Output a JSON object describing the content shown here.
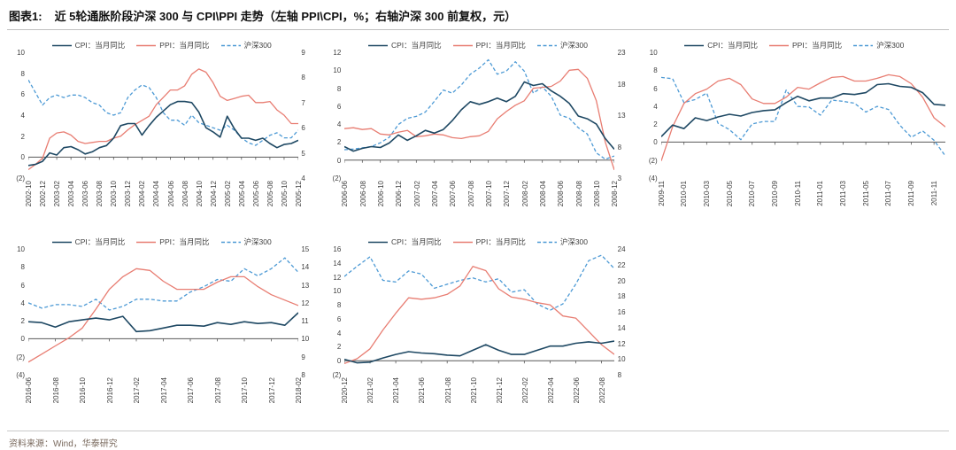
{
  "header": {
    "figure_label": "图表1:",
    "title": "近 5轮通胀阶段沪深 300 与 CPI\\PPI 走势（左轴 PPI\\CPI，%；右轴沪深 300 前复权，元）"
  },
  "source": {
    "text": "资料来源：Wind，华泰研究"
  },
  "colors": {
    "cpi": "#1e4863",
    "ppi": "#e87d72",
    "csi300": "#4d9ad5",
    "axis": "#595959"
  },
  "chart_data": [
    {
      "type": "line",
      "x": [
        "2002-10",
        "2002-11",
        "2002-12",
        "2003-01",
        "2003-02",
        "2003-03",
        "2003-04",
        "2003-05",
        "2003-06",
        "2003-07",
        "2003-08",
        "2003-09",
        "2003-10",
        "2003-11",
        "2003-12",
        "2004-01",
        "2004-02",
        "2004-03",
        "2004-04",
        "2004-05",
        "2004-06",
        "2004-07",
        "2004-08",
        "2004-09",
        "2004-10",
        "2004-11",
        "2004-12",
        "2005-01",
        "2005-02",
        "2005-03",
        "2005-04",
        "2005-05",
        "2005-06",
        "2005-07",
        "2005-08",
        "2005-09",
        "2005-10",
        "2005-11",
        "2005-12"
      ],
      "x_tick_labels": [
        "2002-10",
        "2002-12",
        "2003-02",
        "2003-04",
        "2003-06",
        "2003-08",
        "2003-10",
        "2003-12",
        "2004-02",
        "2004-04",
        "2004-06",
        "2004-08",
        "2004-10",
        "2004-12",
        "2005-02",
        "2005-04",
        "2005-06",
        "2005-08",
        "2005-10",
        "2005-12"
      ],
      "left_axis": {
        "min": -2,
        "max": 10,
        "labels": [
          "10",
          "8",
          "6",
          "4",
          "2",
          "0",
          "(2)"
        ]
      },
      "right_axis": {
        "min": 4,
        "max": 9,
        "labels": [
          "9",
          "8",
          "7",
          "6",
          "5",
          "4"
        ]
      },
      "series": [
        {
          "name": "CPI：当月同比",
          "axis": "left",
          "color_key": "cpi",
          "dash": false,
          "values": [
            -0.8,
            -0.7,
            -0.4,
            0.4,
            0.2,
            0.9,
            1.0,
            0.7,
            0.3,
            0.5,
            0.9,
            1.1,
            1.8,
            3.0,
            3.2,
            3.2,
            2.1,
            3.0,
            3.8,
            4.4,
            5.0,
            5.3,
            5.3,
            5.2,
            4.3,
            2.8,
            2.4,
            1.9,
            3.9,
            2.7,
            1.8,
            1.8,
            1.6,
            1.8,
            1.3,
            0.9,
            1.2,
            1.3,
            1.6
          ]
        },
        {
          "name": "PPI：当月同比",
          "axis": "left",
          "color_key": "ppi",
          "dash": false,
          "values": [
            -1.2,
            -0.7,
            -0.1,
            1.8,
            2.3,
            2.4,
            2.1,
            1.5,
            1.3,
            1.4,
            1.5,
            1.5,
            1.8,
            2.0,
            2.6,
            3.1,
            3.5,
            3.9,
            5.0,
            5.7,
            6.4,
            6.4,
            6.8,
            7.9,
            8.4,
            8.1,
            7.1,
            5.8,
            5.4,
            5.6,
            5.8,
            5.9,
            5.2,
            5.2,
            5.3,
            4.5,
            4.0,
            3.2,
            3.2
          ]
        },
        {
          "name": "沪深300",
          "axis": "right",
          "color_key": "csi300",
          "dash": true,
          "values": [
            7.9,
            7.4,
            6.9,
            7.2,
            7.3,
            7.2,
            7.3,
            7.3,
            7.2,
            7.0,
            6.9,
            6.6,
            6.5,
            6.6,
            7.2,
            7.5,
            7.7,
            7.6,
            7.2,
            6.6,
            6.3,
            6.3,
            6.1,
            6.5,
            6.2,
            6.1,
            6.0,
            5.9,
            6.1,
            5.9,
            5.6,
            5.4,
            5.3,
            5.5,
            5.7,
            5.8,
            5.6,
            5.6,
            5.9
          ]
        }
      ]
    },
    {
      "type": "line",
      "x": [
        "2006-06",
        "2006-07",
        "2006-08",
        "2006-09",
        "2006-10",
        "2006-11",
        "2006-12",
        "2007-01",
        "2007-02",
        "2007-03",
        "2007-04",
        "2007-05",
        "2007-06",
        "2007-07",
        "2007-08",
        "2007-09",
        "2007-10",
        "2007-11",
        "2007-12",
        "2008-01",
        "2008-02",
        "2008-03",
        "2008-04",
        "2008-05",
        "2008-06",
        "2008-07",
        "2008-08",
        "2008-09",
        "2008-10",
        "2008-11",
        "2008-12"
      ],
      "x_tick_labels": [
        "2006-06",
        "2006-08",
        "2006-10",
        "2006-12",
        "2007-02",
        "2007-04",
        "2007-06",
        "2007-08",
        "2007-10",
        "2007-12",
        "2008-02",
        "2008-04",
        "2008-06",
        "2008-08",
        "2008-10",
        "2008-12"
      ],
      "left_axis": {
        "min": -2,
        "max": 12,
        "labels": [
          "12",
          "10",
          "8",
          "6",
          "4",
          "2",
          "0",
          "(2)"
        ]
      },
      "right_axis": {
        "min": 3,
        "max": 23,
        "labels": [
          "23",
          "18",
          "13",
          "8",
          "3"
        ]
      },
      "series": [
        {
          "name": "CPI：当月同比",
          "axis": "left",
          "color_key": "cpi",
          "dash": false,
          "values": [
            1.5,
            1.0,
            1.3,
            1.5,
            1.4,
            1.9,
            2.8,
            2.2,
            2.7,
            3.3,
            3.0,
            3.4,
            4.4,
            5.6,
            6.5,
            6.2,
            6.5,
            6.9,
            6.5,
            7.1,
            8.7,
            8.3,
            8.5,
            7.7,
            7.1,
            6.3,
            4.9,
            4.6,
            4.0,
            2.4,
            1.2
          ]
        },
        {
          "name": "PPI：当月同比",
          "axis": "left",
          "color_key": "ppi",
          "dash": false,
          "values": [
            3.5,
            3.6,
            3.4,
            3.5,
            2.9,
            2.8,
            3.1,
            3.3,
            2.6,
            2.7,
            2.9,
            2.8,
            2.5,
            2.4,
            2.6,
            2.7,
            3.2,
            4.6,
            5.4,
            6.1,
            6.6,
            8.0,
            8.1,
            8.2,
            8.8,
            10.0,
            10.1,
            9.1,
            6.6,
            2.0,
            -1.1
          ]
        },
        {
          "name": "沪深300",
          "axis": "right",
          "color_key": "csi300",
          "dash": true,
          "values": [
            7.5,
            7.6,
            7.8,
            8.0,
            8.6,
            9.5,
            11.5,
            12.5,
            12.8,
            13.5,
            15.2,
            17.0,
            16.5,
            17.8,
            19.5,
            20.5,
            21.8,
            19.5,
            20.0,
            21.5,
            20.0,
            16.5,
            17.5,
            16.0,
            13.0,
            12.5,
            11.0,
            10.0,
            7.0,
            6.0,
            6.5
          ]
        }
      ]
    },
    {
      "type": "line",
      "x": [
        "2009-11",
        "2009-12",
        "2010-01",
        "2010-02",
        "2010-03",
        "2010-04",
        "2010-05",
        "2010-06",
        "2010-07",
        "2010-08",
        "2010-09",
        "2010-10",
        "2010-11",
        "2010-12",
        "2011-01",
        "2011-02",
        "2011-03",
        "2011-04",
        "2011-05",
        "2011-06",
        "2011-07",
        "2011-08",
        "2011-09",
        "2011-10",
        "2011-11",
        "2011-12"
      ],
      "x_tick_labels": [
        "2009-11",
        "2010-01",
        "2010-03",
        "2010-05",
        "2010-07",
        "2010-09",
        "2010-11",
        "2011-01",
        "2011-03",
        "2011-05",
        "2011-07",
        "2011-09",
        "2011-11"
      ],
      "left_axis": {
        "min": -4,
        "max": 10,
        "labels": [
          "10",
          "8",
          "6",
          "4",
          "2",
          "0",
          "(2)",
          "(4)"
        ]
      },
      "right_axis": {
        "min": 2.0,
        "max": 4.0,
        "labels": []
      },
      "series": [
        {
          "name": "CPI：当月同比",
          "axis": "left",
          "color_key": "cpi",
          "dash": false,
          "values": [
            0.6,
            1.9,
            1.5,
            2.7,
            2.4,
            2.8,
            3.1,
            2.9,
            3.3,
            3.5,
            3.6,
            4.4,
            5.1,
            4.6,
            4.9,
            4.9,
            5.4,
            5.3,
            5.5,
            6.4,
            6.5,
            6.2,
            6.1,
            5.5,
            4.2,
            4.1
          ]
        },
        {
          "name": "PPI：当月同比",
          "axis": "left",
          "color_key": "ppi",
          "dash": false,
          "values": [
            -2.1,
            1.7,
            4.3,
            5.4,
            5.9,
            6.8,
            7.1,
            6.4,
            4.8,
            4.3,
            4.3,
            5.0,
            6.1,
            5.9,
            6.6,
            7.2,
            7.3,
            6.8,
            6.8,
            7.1,
            7.5,
            7.3,
            6.5,
            5.0,
            2.7,
            1.7
          ]
        },
        {
          "name": "沪深300",
          "axis": "right",
          "color_key": "csi300",
          "dash": true,
          "values": [
            3.6,
            3.58,
            3.2,
            3.25,
            3.35,
            2.87,
            2.77,
            2.61,
            2.86,
            2.9,
            2.9,
            3.4,
            3.14,
            3.13,
            3.0,
            3.24,
            3.22,
            3.19,
            3.05,
            3.14,
            3.09,
            2.84,
            2.65,
            2.75,
            2.6,
            2.35
          ]
        }
      ]
    },
    {
      "type": "line",
      "x": [
        "2016-06",
        "2016-07",
        "2016-08",
        "2016-09",
        "2016-10",
        "2016-11",
        "2016-12",
        "2017-01",
        "2017-02",
        "2017-03",
        "2017-04",
        "2017-05",
        "2017-06",
        "2017-07",
        "2017-08",
        "2017-09",
        "2017-10",
        "2017-11",
        "2017-12",
        "2018-01",
        "2018-02"
      ],
      "x_tick_labels": [
        "2016-06",
        "2016-08",
        "2016-10",
        "2016-12",
        "2017-02",
        "2017-04",
        "2017-06",
        "2017-08",
        "2017-10",
        "2017-12",
        "2018-02"
      ],
      "left_axis": {
        "min": -4,
        "max": 10,
        "labels": [
          "10",
          "8",
          "6",
          "4",
          "2",
          "0",
          "(2)",
          "(4)"
        ]
      },
      "right_axis": {
        "min": 8,
        "max": 15,
        "labels": [
          "15",
          "14",
          "13",
          "12",
          "11",
          "10",
          "9",
          "8"
        ]
      },
      "series": [
        {
          "name": "CPI：当月同比",
          "axis": "left",
          "color_key": "cpi",
          "dash": false,
          "values": [
            1.9,
            1.8,
            1.3,
            1.9,
            2.1,
            2.3,
            2.1,
            2.5,
            0.8,
            0.9,
            1.2,
            1.5,
            1.5,
            1.4,
            1.8,
            1.6,
            1.9,
            1.7,
            1.8,
            1.5,
            2.9
          ]
        },
        {
          "name": "PPI：当月同比",
          "axis": "left",
          "color_key": "ppi",
          "dash": false,
          "values": [
            -2.6,
            -1.7,
            -0.8,
            0.1,
            1.2,
            3.3,
            5.5,
            6.9,
            7.8,
            7.6,
            6.4,
            5.5,
            5.5,
            5.5,
            6.3,
            6.9,
            6.9,
            5.8,
            4.9,
            4.3,
            3.7
          ]
        },
        {
          "name": "沪深300",
          "axis": "right",
          "color_key": "csi300",
          "dash": true,
          "values": [
            12.0,
            11.7,
            11.9,
            11.9,
            11.8,
            12.2,
            11.6,
            11.8,
            12.2,
            12.2,
            12.1,
            12.1,
            12.6,
            12.9,
            13.3,
            13.2,
            13.9,
            13.5,
            13.9,
            14.5,
            13.7
          ]
        }
      ]
    },
    {
      "type": "line",
      "x": [
        "2020-12",
        "2021-01",
        "2021-02",
        "2021-03",
        "2021-04",
        "2021-05",
        "2021-06",
        "2021-07",
        "2021-08",
        "2021-09",
        "2021-10",
        "2021-11",
        "2021-12",
        "2022-01",
        "2022-02",
        "2022-03",
        "2022-04",
        "2022-05",
        "2022-06",
        "2022-07",
        "2022-08",
        "2022-09"
      ],
      "x_tick_labels": [
        "2020-12",
        "2021-02",
        "2021-04",
        "2021-06",
        "2021-08",
        "2021-10",
        "2021-12",
        "2022-02",
        "2022-04",
        "2022-06",
        "2022-08"
      ],
      "left_axis": {
        "min": -2,
        "max": 16,
        "labels": [
          "16",
          "14",
          "12",
          "10",
          "8",
          "6",
          "4",
          "2",
          "0",
          "(2)"
        ]
      },
      "right_axis": {
        "min": 8,
        "max": 24,
        "labels": [
          "24",
          "22",
          "20",
          "18",
          "16",
          "14",
          "12",
          "10",
          "8"
        ]
      },
      "series": [
        {
          "name": "CPI：当月同比",
          "axis": "left",
          "color_key": "cpi",
          "dash": false,
          "values": [
            0.2,
            -0.3,
            -0.2,
            0.4,
            0.9,
            1.3,
            1.1,
            1.0,
            0.8,
            0.7,
            1.5,
            2.3,
            1.5,
            0.9,
            0.9,
            1.5,
            2.1,
            2.1,
            2.5,
            2.7,
            2.5,
            2.8
          ]
        },
        {
          "name": "PPI：当月同比",
          "axis": "left",
          "color_key": "ppi",
          "dash": false,
          "values": [
            -0.4,
            0.3,
            1.7,
            4.4,
            6.8,
            9.0,
            8.8,
            9.0,
            9.5,
            10.7,
            13.5,
            12.9,
            10.3,
            9.1,
            8.8,
            8.3,
            8.0,
            6.4,
            6.1,
            4.2,
            2.3,
            0.9
          ]
        },
        {
          "name": "沪深300",
          "axis": "right",
          "color_key": "csi300",
          "dash": true,
          "values": [
            20.5,
            21.8,
            23.0,
            20.0,
            19.8,
            21.2,
            20.8,
            19.0,
            19.5,
            20.0,
            20.3,
            19.8,
            20.2,
            18.5,
            18.8,
            17.0,
            16.2,
            17.0,
            19.5,
            22.5,
            23.2,
            21.5
          ]
        }
      ]
    }
  ]
}
